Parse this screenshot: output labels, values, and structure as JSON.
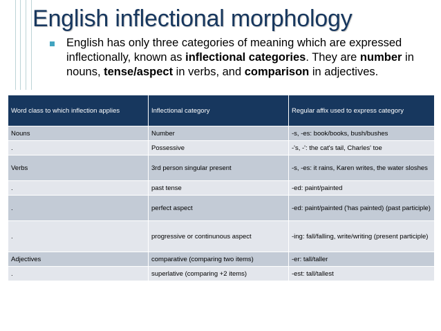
{
  "title": "English inflectional morphology",
  "bullet": {
    "part1": "English has only three categories of meaning which are expressed inflectionally, known as ",
    "term1": "inflectional categories",
    "part2": ". They are ",
    "term2": "number",
    "part3": " in nouns, ",
    "term3": "tense/aspect",
    "part4": " in verbs, and ",
    "term4": "comparison",
    "part5": " in adjectives."
  },
  "table": {
    "headers": [
      "Word class to which inflection applies",
      "Inflectional category",
      "Regular affix used to express category"
    ],
    "rows": [
      [
        "Nouns",
        "Number",
        "-s, -es: book/books, bush/bushes"
      ],
      [
        ".",
        "Possessive",
        "-'s, -': the cat's tail, Charles' toe"
      ],
      [
        "Verbs",
        "3rd person singular present",
        "-s, -es: it rains, Karen writes, the water sloshes"
      ],
      [
        ".",
        "past tense",
        "-ed: paint/painted"
      ],
      [
        ".",
        "perfect aspect",
        "-ed: paint/painted ('has painted) (past participle)"
      ],
      [
        ".",
        "progressive or continunous aspect",
        "-ing: fall/falling, write/writing (present participle)"
      ],
      [
        "Adjectives",
        "comparative (comparing two items)",
        "-er: tall/taller"
      ],
      [
        ".",
        "superlative (comparing +2 items)",
        "-est: tall/tallest"
      ]
    ]
  },
  "colors": {
    "title": "#17375e",
    "header_bg": "#17375e",
    "row_dark": "#c3cbd6",
    "row_light": "#e3e6ec",
    "bullet": "#42a4c0",
    "decor_lines": "#bcd3d6"
  }
}
